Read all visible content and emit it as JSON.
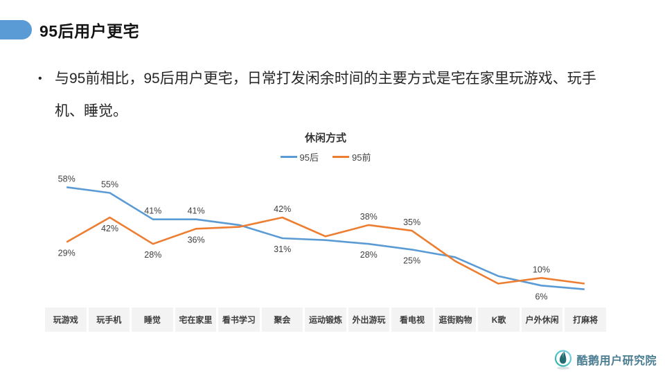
{
  "slide": {
    "title": "95后用户更宅",
    "bullet": {
      "marker": "•",
      "line1": "与95前相比，95后用户更宅，日常打发闲余时间的主要方式是宅在家里玩游戏、玩手",
      "line2": "机、睡觉。"
    },
    "footer": {
      "logo_text": "酷鹅用户研究院",
      "logo_icon": "goose-logo-icon"
    }
  },
  "colors": {
    "accent_blue": "#5B9BD5",
    "series_blue": "#5B9BD5",
    "series_orange": "#ED7D31",
    "data_label_gray": "#3f3f3f",
    "axis_band_bg": "#f3f3f3",
    "logo_teal": "#4a7d91"
  },
  "chart_data": {
    "type": "line",
    "title": "休闲方式",
    "legend_position": "top",
    "grid": false,
    "ylim": [
      0,
      65
    ],
    "categories": [
      "玩游戏",
      "玩手机",
      "睡觉",
      "宅在家里",
      "看书学习",
      "聚会",
      "运动锻炼",
      "外出游玩",
      "看电视",
      "逛街购物",
      "K歌",
      "户外休闲",
      "打麻将"
    ],
    "series": [
      {
        "name": "95后",
        "color": "#5B9BD5",
        "values": [
          58,
          55,
          41,
          41,
          38,
          31,
          30,
          28,
          25,
          21,
          11,
          6,
          4
        ],
        "labels": [
          "58%",
          "55%",
          "41%",
          "41%",
          "",
          "31%",
          "",
          "28%",
          "25%",
          "",
          "",
          "6%",
          ""
        ],
        "label_side": [
          "above",
          "above",
          "above",
          "above",
          "",
          "below",
          "",
          "below",
          "below",
          "",
          "",
          "below",
          ""
        ]
      },
      {
        "name": "95前",
        "color": "#ED7D31",
        "values": [
          29,
          42,
          28,
          36,
          37,
          42,
          32,
          38,
          35,
          19,
          7,
          10,
          7
        ],
        "labels": [
          "29%",
          "42%",
          "28%",
          "36%",
          "",
          "42%",
          "",
          "38%",
          "35%",
          "",
          "",
          "10%",
          ""
        ],
        "label_side": [
          "below",
          "below",
          "below",
          "below",
          "",
          "above",
          "",
          "above",
          "above",
          "",
          "",
          "above",
          ""
        ]
      }
    ]
  }
}
